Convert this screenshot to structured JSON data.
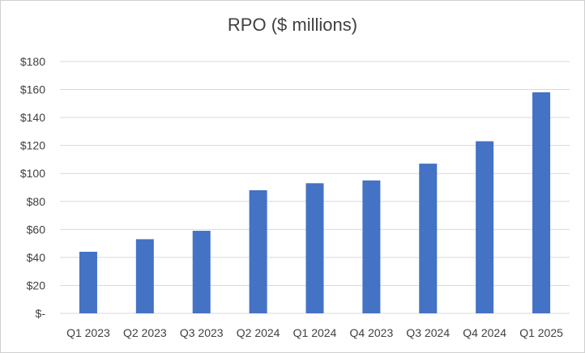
{
  "chart_data": {
    "type": "bar",
    "title": "RPO ($ millions)",
    "xlabel": "",
    "ylabel": "",
    "categories": [
      "Q1 2023",
      "Q2 2023",
      "Q3 2023",
      "Q2 2024",
      "Q1 2024",
      "Q4 2023",
      "Q3 2024",
      "Q4 2024",
      "Q1 2025"
    ],
    "values": [
      44,
      53,
      59,
      88,
      93,
      95,
      107,
      123,
      158
    ],
    "ylim": [
      0,
      180
    ],
    "yticks": [
      0,
      20,
      40,
      60,
      80,
      100,
      120,
      140,
      160,
      180
    ],
    "ytick_labels": [
      "$-",
      "$20",
      "$40",
      "$60",
      "$80",
      "$100",
      "$120",
      "$140",
      "$160",
      "$180"
    ],
    "grid": true,
    "legend": "none",
    "colors": {
      "bar": "#4472c4",
      "grid": "#d9d9d9",
      "text": "#404040"
    }
  }
}
